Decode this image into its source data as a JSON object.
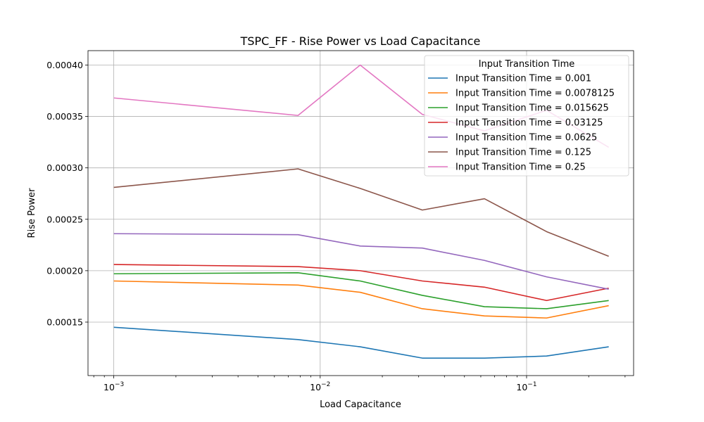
{
  "chart_data": {
    "type": "line",
    "title": "TSPC_FF - Rise Power vs Load Capacitance",
    "xlabel": "Load Capacitance",
    "ylabel": "Rise Power",
    "xscale": "log",
    "xlim": [
      0.00075,
      0.33
    ],
    "ylim": [
      9.8e-05,
      0.000414
    ],
    "x_ticks": [
      {
        "value": 0.001,
        "base": "10",
        "exp": "−3"
      },
      {
        "value": 0.01,
        "base": "10",
        "exp": "−2"
      },
      {
        "value": 0.1,
        "base": "10",
        "exp": "−1"
      }
    ],
    "y_ticks": [
      {
        "value": 0.00015,
        "label": "0.00015"
      },
      {
        "value": 0.0002,
        "label": "0.00020"
      },
      {
        "value": 0.00025,
        "label": "0.00025"
      },
      {
        "value": 0.0003,
        "label": "0.00030"
      },
      {
        "value": 0.00035,
        "label": "0.00035"
      },
      {
        "value": 0.0004,
        "label": "0.00040"
      }
    ],
    "grid": true,
    "legend": {
      "title": "Input Transition Time",
      "position": "top-right"
    },
    "x": [
      0.001,
      0.0078125,
      0.015625,
      0.03125,
      0.0625,
      0.125,
      0.25
    ],
    "series": [
      {
        "name": "Input Transition Time = 0.001",
        "color": "#1f77b4",
        "values": [
          0.000145,
          0.000133,
          0.000126,
          0.000115,
          0.000115,
          0.000117,
          0.000126
        ]
      },
      {
        "name": "Input Transition Time = 0.0078125",
        "color": "#ff7f0e",
        "values": [
          0.00019,
          0.000186,
          0.000179,
          0.000163,
          0.000156,
          0.000154,
          0.000166
        ]
      },
      {
        "name": "Input Transition Time = 0.015625",
        "color": "#2ca02c",
        "values": [
          0.000197,
          0.000198,
          0.00019,
          0.000176,
          0.000165,
          0.000163,
          0.000171
        ]
      },
      {
        "name": "Input Transition Time = 0.03125",
        "color": "#d62728",
        "values": [
          0.000206,
          0.000204,
          0.0002,
          0.00019,
          0.000184,
          0.000171,
          0.000183
        ]
      },
      {
        "name": "Input Transition Time = 0.0625",
        "color": "#9467bd",
        "values": [
          0.000236,
          0.000235,
          0.000224,
          0.000222,
          0.00021,
          0.000194,
          0.000182
        ]
      },
      {
        "name": "Input Transition Time = 0.125",
        "color": "#8c564b",
        "values": [
          0.000281,
          0.000299,
          0.00028,
          0.000259,
          0.00027,
          0.000238,
          0.000214
        ]
      },
      {
        "name": "Input Transition Time = 0.25",
        "color": "#e377c2",
        "values": [
          0.000368,
          0.000351,
          0.0004,
          0.000352,
          0.000336,
          0.000356,
          0.00032
        ]
      }
    ]
  }
}
